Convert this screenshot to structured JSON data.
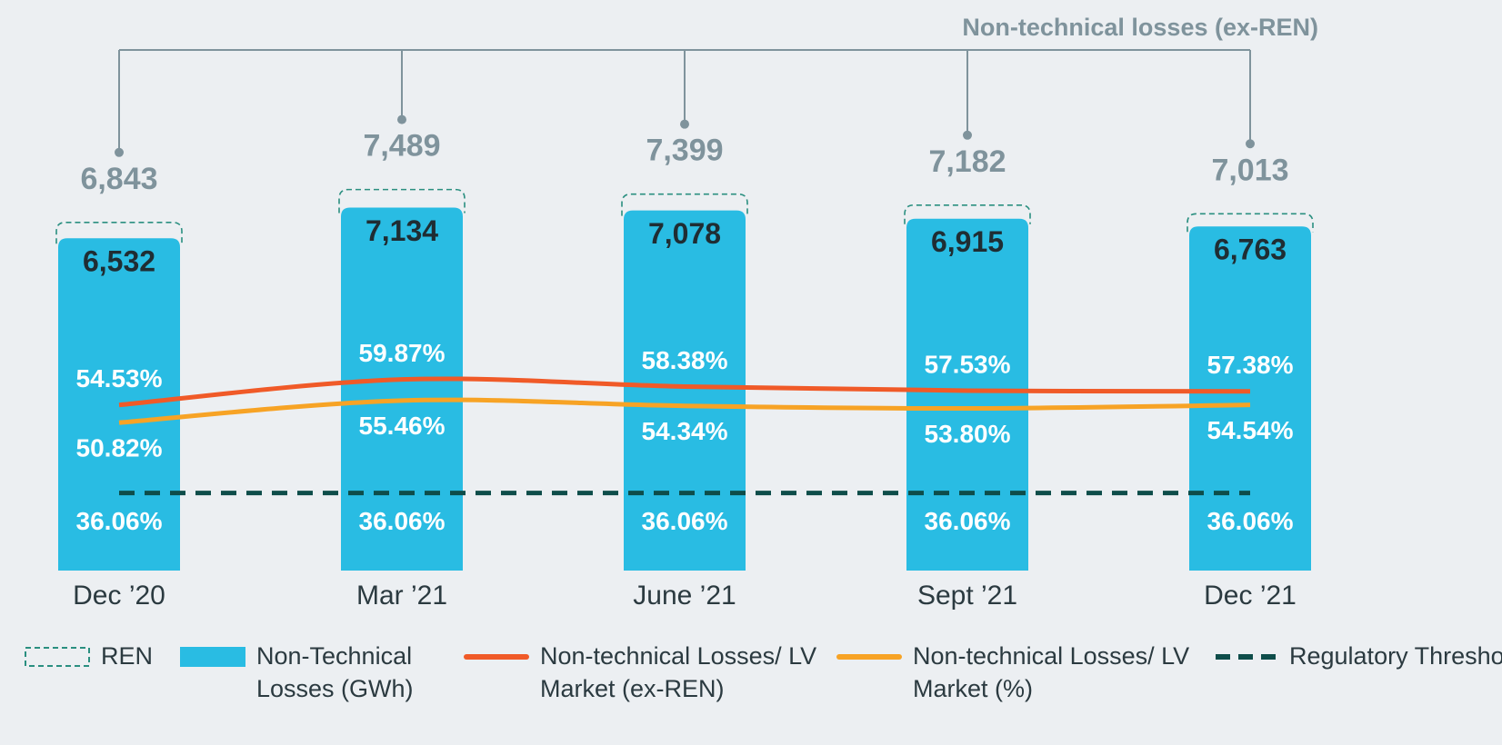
{
  "chart_data": {
    "type": "bar",
    "annotation": "Non-technical losses (ex-REN)",
    "categories": [
      "Dec ’20",
      "Mar ’21",
      "June ’21",
      "Sept ’21",
      "Dec ’21"
    ],
    "ylim": [
      0,
      8000
    ],
    "y2lim": [
      0,
      100
    ],
    "series": [
      {
        "name": "REN",
        "kind": "outline",
        "color": "#2a8f80",
        "values": [
          6843,
          7489,
          7399,
          7182,
          7013
        ],
        "value_labels": [
          "6,843",
          "7,489",
          "7,399",
          "7,182",
          "7,013"
        ]
      },
      {
        "name": "Non-Technical Losses (GWh)",
        "kind": "bar",
        "color": "#29bce3",
        "values": [
          6532,
          7134,
          7078,
          6915,
          6763
        ],
        "value_labels": [
          "6,532",
          "7,134",
          "7,078",
          "6,915",
          "6,763"
        ]
      },
      {
        "name": "Non-technical Losses/ LV Market (ex-REN)",
        "kind": "line",
        "axis": "y2",
        "color": "#f05a28",
        "values": [
          54.53,
          59.87,
          58.38,
          57.53,
          57.38
        ],
        "value_labels": [
          "54.53%",
          "59.87%",
          "58.38%",
          "57.53%",
          "57.38%"
        ]
      },
      {
        "name": "Non-technical Losses/ LV Market (%)",
        "kind": "line",
        "axis": "y2",
        "color": "#f7a325",
        "values": [
          50.82,
          55.46,
          54.34,
          53.8,
          54.54
        ],
        "value_labels": [
          "50.82%",
          "55.46%",
          "54.34%",
          "53.80%",
          "54.54%"
        ]
      },
      {
        "name": "Regulatory Threshold",
        "kind": "dashed",
        "axis": "y2",
        "color": "#0e4d4a",
        "values": [
          36.06,
          36.06,
          36.06,
          36.06,
          36.06
        ],
        "value_labels": [
          "36.06%",
          "36.06%",
          "36.06%",
          "36.06%",
          "36.06%"
        ]
      }
    ]
  }
}
